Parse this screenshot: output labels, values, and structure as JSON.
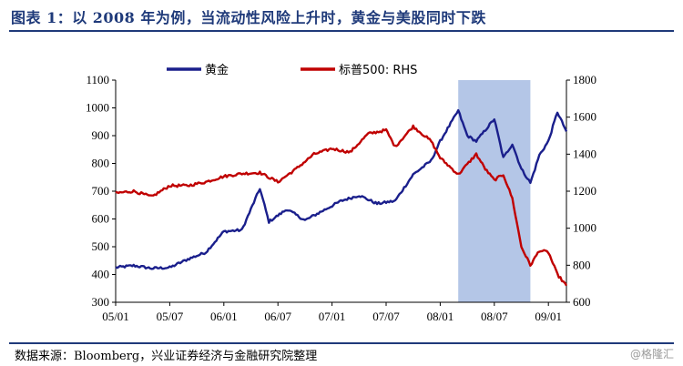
{
  "header": {
    "title": "图表 1：以 2008 年为例，当流动性风险上升时，黄金与美股同时下跌"
  },
  "footer": {
    "source": "数据来源：Bloomberg，兴业证券经济与金融研究院整理",
    "watermark": "@格隆汇"
  },
  "chart_data": {
    "type": "line",
    "title": "",
    "xlabel": "",
    "ylabel": "",
    "x_ticks": [
      "05/01",
      "05/07",
      "06/01",
      "06/07",
      "07/01",
      "07/07",
      "08/01",
      "08/07",
      "09/01"
    ],
    "x_range": [
      "2005-01",
      "2009-03"
    ],
    "ylim_left": [
      300,
      1100
    ],
    "y_ticks_left": [
      300,
      400,
      500,
      600,
      700,
      800,
      900,
      1000,
      1100
    ],
    "ylim_right": [
      600,
      1800
    ],
    "y_ticks_right": [
      600,
      800,
      1000,
      1200,
      1400,
      1600,
      1800
    ],
    "legend_placement": "top",
    "grid": false,
    "highlight_region": {
      "x_start": "2008-03",
      "x_end": "2008-11",
      "color": "#b4c6e7"
    },
    "series": [
      {
        "name": "黄金",
        "axis": "left",
        "color": "#1a1f8c",
        "points": [
          [
            "2005-01",
            425
          ],
          [
            "2005-03",
            432
          ],
          [
            "2005-05",
            422
          ],
          [
            "2005-07",
            425
          ],
          [
            "2005-09",
            455
          ],
          [
            "2005-11",
            480
          ],
          [
            "2006-01",
            555
          ],
          [
            "2006-03",
            560
          ],
          [
            "2006-05",
            710
          ],
          [
            "2006-06",
            590
          ],
          [
            "2006-08",
            635
          ],
          [
            "2006-10",
            595
          ],
          [
            "2006-12",
            630
          ],
          [
            "2007-02",
            665
          ],
          [
            "2007-04",
            685
          ],
          [
            "2007-06",
            655
          ],
          [
            "2007-08",
            665
          ],
          [
            "2007-10",
            760
          ],
          [
            "2007-12",
            810
          ],
          [
            "2008-01",
            880
          ],
          [
            "2008-03",
            990
          ],
          [
            "2008-04",
            900
          ],
          [
            "2008-05",
            880
          ],
          [
            "2008-06",
            920
          ],
          [
            "2008-07",
            960
          ],
          [
            "2008-08",
            820
          ],
          [
            "2008-09",
            870
          ],
          [
            "2008-10",
            780
          ],
          [
            "2008-11",
            730
          ],
          [
            "2008-12",
            830
          ],
          [
            "2009-01",
            880
          ],
          [
            "2009-02",
            985
          ],
          [
            "2009-03",
            915
          ]
        ]
      },
      {
        "name": "标普500: RHS",
        "axis": "right",
        "color": "#c00000",
        "points": [
          [
            "2005-01",
            1190
          ],
          [
            "2005-03",
            1200
          ],
          [
            "2005-05",
            1170
          ],
          [
            "2005-07",
            1230
          ],
          [
            "2005-09",
            1230
          ],
          [
            "2005-11",
            1250
          ],
          [
            "2006-01",
            1280
          ],
          [
            "2006-03",
            1295
          ],
          [
            "2006-05",
            1300
          ],
          [
            "2006-07",
            1250
          ],
          [
            "2006-09",
            1320
          ],
          [
            "2006-11",
            1400
          ],
          [
            "2007-01",
            1430
          ],
          [
            "2007-03",
            1410
          ],
          [
            "2007-05",
            1510
          ],
          [
            "2007-07",
            1530
          ],
          [
            "2007-08",
            1440
          ],
          [
            "2007-10",
            1550
          ],
          [
            "2007-12",
            1470
          ],
          [
            "2008-01",
            1380
          ],
          [
            "2008-03",
            1290
          ],
          [
            "2008-05",
            1400
          ],
          [
            "2008-06",
            1320
          ],
          [
            "2008-07",
            1260
          ],
          [
            "2008-08",
            1290
          ],
          [
            "2008-09",
            1160
          ],
          [
            "2008-10",
            900
          ],
          [
            "2008-11",
            800
          ],
          [
            "2008-12",
            880
          ],
          [
            "2009-01",
            870
          ],
          [
            "2009-02",
            750
          ],
          [
            "2009-03",
            690
          ]
        ]
      }
    ]
  }
}
